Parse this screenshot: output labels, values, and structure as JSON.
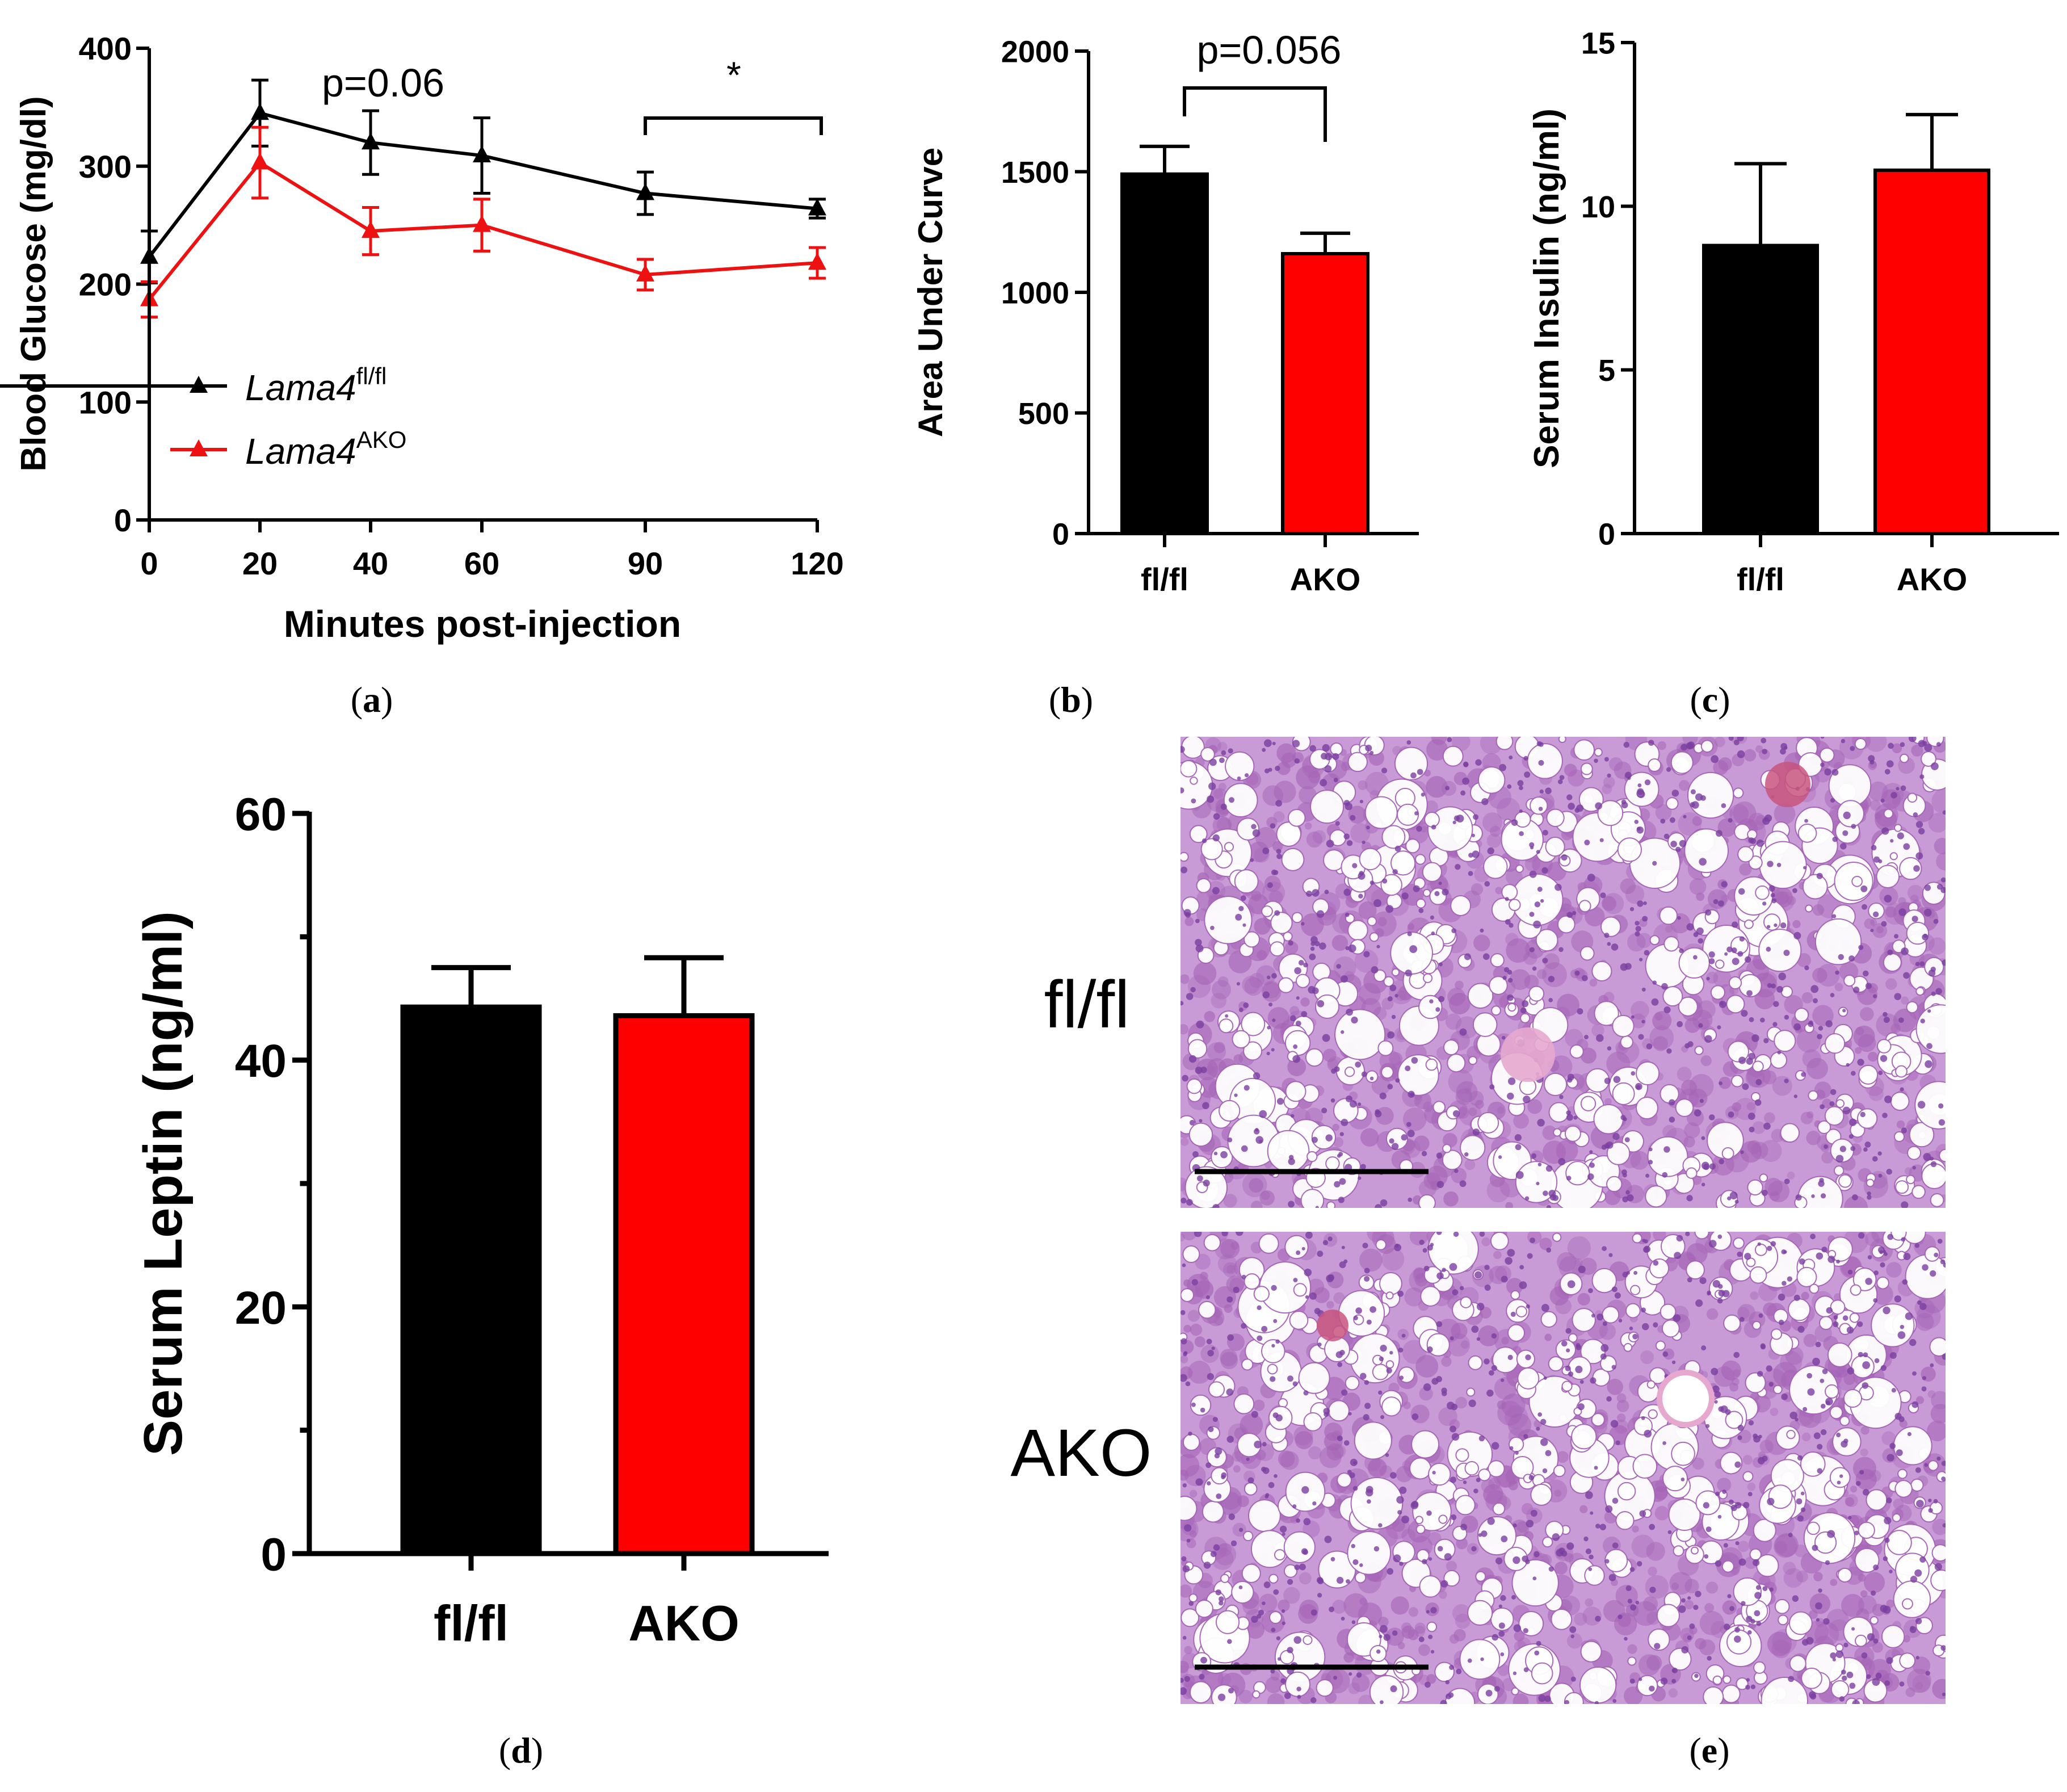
{
  "chart_data": [
    {
      "id": "a",
      "type": "line",
      "panel_label": "(a)",
      "xlabel": "Minutes post-injection",
      "ylabel": "Blood Glucose (mg/dl)",
      "x_ticks": [
        "0",
        "20",
        "40",
        "60",
        "90",
        "120"
      ],
      "y_ticks": [
        "0",
        "100",
        "200",
        "300",
        "400"
      ],
      "ylim": [
        0,
        400
      ],
      "series": [
        {
          "name": "Lama4",
          "superscript": "fl/fl",
          "color": "#000000",
          "values": [
            223,
            345,
            320,
            309,
            277,
            264
          ],
          "errors": [
            22,
            28,
            27,
            32,
            18,
            8
          ]
        },
        {
          "name": "Lama4",
          "superscript": "AKO",
          "color": "#ee1111",
          "values": [
            187,
            303,
            245,
            250,
            208,
            218
          ],
          "errors": [
            15,
            30,
            20,
            22,
            13,
            13
          ]
        }
      ],
      "annotations": [
        "p=0.06",
        "*"
      ]
    },
    {
      "id": "b",
      "type": "bar",
      "panel_label": "(b)",
      "categories": [
        "fl/fl",
        "AKO"
      ],
      "values": [
        1490,
        1160
      ],
      "errors": [
        115,
        85
      ],
      "colors": [
        "#000000",
        "#ff0000"
      ],
      "ylabel": "Area Under Curve",
      "y_ticks": [
        "0",
        "500",
        "1000",
        "1500",
        "2000"
      ],
      "ylim": [
        0,
        2000
      ],
      "annotation": "p=0.056"
    },
    {
      "id": "c",
      "type": "bar",
      "panel_label": "(c)",
      "categories": [
        "fl/fl",
        "AKO"
      ],
      "values": [
        8.8,
        11.1
      ],
      "errors": [
        2.5,
        1.7
      ],
      "colors": [
        "#000000",
        "#ff0000"
      ],
      "ylabel": "Serum Insulin (ng/ml)",
      "y_ticks": [
        "0",
        "5",
        "10",
        "15"
      ],
      "ylim": [
        0,
        15
      ]
    },
    {
      "id": "d",
      "type": "bar",
      "panel_label": "(d)",
      "categories": [
        "fl/fl",
        "AKO"
      ],
      "values": [
        44.3,
        43.6
      ],
      "errors": [
        3.2,
        4.7
      ],
      "colors": [
        "#000000",
        "#ff0000"
      ],
      "ylabel": "Serum Leptin (ng/ml)",
      "y_ticks": [
        "0",
        "20",
        "40",
        "60"
      ],
      "ylim": [
        0,
        60
      ]
    }
  ],
  "panel_e": {
    "panel_label": "(e)",
    "rows": [
      {
        "label": "fl/fl"
      },
      {
        "label": "AKO"
      }
    ],
    "image_colors": {
      "tissue": "#c89bd6",
      "cell": "#a564b6",
      "vacuole": "#ffffff",
      "nucleus": "#7a3fa0",
      "vessel": "#c8557e"
    }
  }
}
